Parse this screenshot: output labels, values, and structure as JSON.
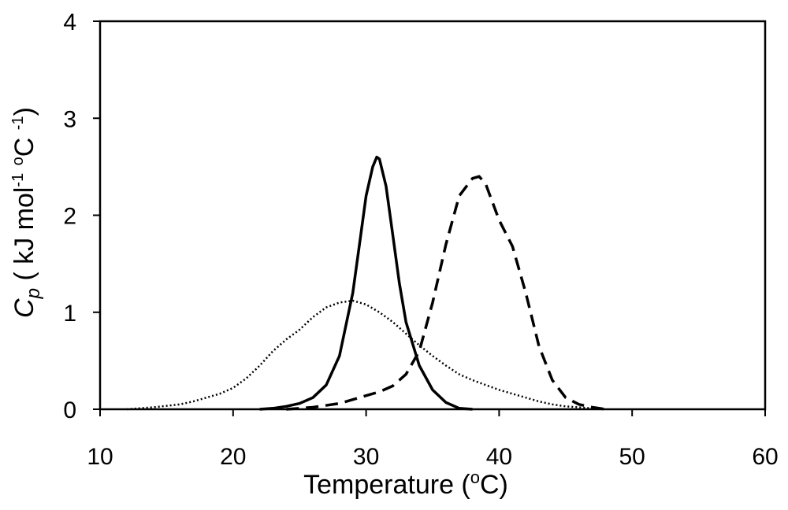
{
  "chart_data": {
    "type": "line",
    "title": "",
    "xlabel": {
      "main": "Temperature (",
      "sup": "o",
      "tail": "C)"
    },
    "ylabel": {
      "symbol": "C",
      "subscript": "p",
      "unit_start": " ( kJ mol",
      "sup1": "-1",
      "mid": " ",
      "sup2": "o",
      "unit_end": "C ",
      "sup3": "-1",
      "close": ")"
    },
    "xlim": [
      10,
      60
    ],
    "ylim": [
      0,
      4
    ],
    "xticks": [
      "10",
      "20",
      "30",
      "40",
      "50",
      "60"
    ],
    "yticks": [
      "0",
      "1",
      "2",
      "3",
      "4"
    ],
    "grid": false,
    "legend": "none",
    "series": [
      {
        "style": "dotted",
        "x": [
          12,
          14,
          16,
          17,
          18,
          19,
          20,
          21,
          22,
          23,
          24,
          25,
          26,
          27,
          28,
          29,
          30,
          31,
          32,
          33,
          34,
          35,
          36,
          37,
          38,
          39,
          40,
          41,
          42,
          43,
          44,
          45,
          46,
          47,
          48
        ],
        "y": [
          0.0,
          0.02,
          0.05,
          0.08,
          0.12,
          0.16,
          0.22,
          0.32,
          0.45,
          0.6,
          0.72,
          0.82,
          0.95,
          1.05,
          1.1,
          1.12,
          1.08,
          1.0,
          0.9,
          0.78,
          0.66,
          0.55,
          0.45,
          0.36,
          0.3,
          0.25,
          0.2,
          0.16,
          0.12,
          0.08,
          0.05,
          0.03,
          0.02,
          0.01,
          0.0
        ]
      },
      {
        "style": "solid",
        "x": [
          22,
          23,
          24,
          25,
          26,
          27,
          28,
          29,
          29.5,
          30,
          30.5,
          30.8,
          31,
          31.5,
          32,
          32.5,
          33,
          34,
          35,
          36,
          37,
          38
        ],
        "y": [
          0.0,
          0.01,
          0.03,
          0.06,
          0.12,
          0.25,
          0.55,
          1.2,
          1.7,
          2.2,
          2.5,
          2.6,
          2.58,
          2.3,
          1.8,
          1.3,
          0.9,
          0.45,
          0.2,
          0.07,
          0.01,
          0.0
        ]
      },
      {
        "style": "dashed",
        "x": [
          24,
          26,
          28,
          29,
          30,
          31,
          32,
          33,
          34,
          35,
          36,
          37,
          38,
          38.5,
          39,
          40,
          41,
          42,
          43,
          44,
          45,
          46,
          47,
          48
        ],
        "y": [
          0.0,
          0.02,
          0.06,
          0.1,
          0.14,
          0.18,
          0.24,
          0.36,
          0.6,
          1.1,
          1.7,
          2.2,
          2.38,
          2.4,
          2.32,
          1.95,
          1.68,
          1.2,
          0.65,
          0.3,
          0.12,
          0.05,
          0.02,
          0.0
        ]
      }
    ]
  }
}
